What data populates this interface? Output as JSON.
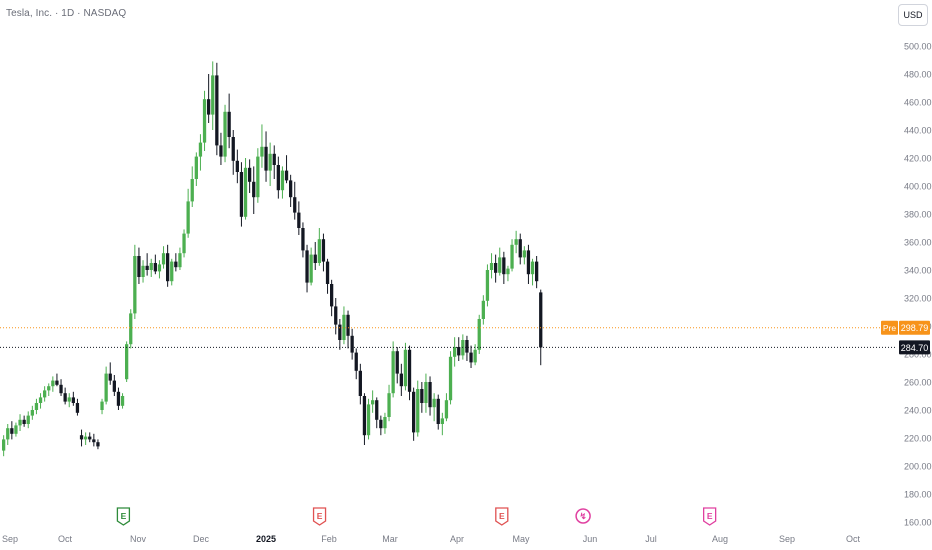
{
  "header": {
    "title": "Tesla, Inc. · 1D · NASDAQ",
    "currency_button": "USD"
  },
  "colors": {
    "up": "#4caf50",
    "down": "#131722",
    "pre_line": "#f7931a",
    "axis_text": "#787b86",
    "earnings_green": "#2e8b3a",
    "earnings_red": "#e05252",
    "earnings_pink": "#e040a0",
    "dividend_purple": "#9c27b0"
  },
  "chart_data": {
    "type": "candlestick",
    "title": "Tesla, Inc. · 1D · NASDAQ",
    "x_axis": {
      "labels": [
        "Sep",
        "Oct",
        "Nov",
        "Dec",
        "2025",
        "Feb",
        "Mar",
        "Apr",
        "May",
        "Jun",
        "Jul",
        "Aug",
        "Sep",
        "Oct"
      ]
    },
    "y_axis": {
      "range": [
        160,
        500
      ],
      "ticks": [
        160,
        180,
        200,
        220,
        240,
        260,
        280,
        300,
        320,
        340,
        360,
        380,
        400,
        420,
        440,
        460,
        480,
        500
      ]
    },
    "pre_market": {
      "label": "Pre",
      "value": "298.79",
      "price": 298.79
    },
    "last_price": {
      "value": "284.70",
      "price": 284.7
    },
    "events": [
      {
        "kind": "earnings",
        "symbol": "E",
        "style": "green",
        "month": "Oct",
        "offset": 0.8
      },
      {
        "kind": "earnings",
        "symbol": "E",
        "style": "red",
        "month": "Jan",
        "offset": 0.85
      },
      {
        "kind": "earnings",
        "symbol": "E",
        "style": "red",
        "month": "Apr",
        "offset": 0.7
      },
      {
        "kind": "split",
        "symbol": "↯",
        "style": "pink",
        "month": "May",
        "offset": 0.9
      },
      {
        "kind": "earnings",
        "symbol": "E",
        "style": "pink",
        "month": "Jul",
        "offset": 0.85
      }
    ],
    "bars": [
      [
        211,
        222,
        207,
        219
      ],
      [
        219,
        230,
        215,
        227
      ],
      [
        227,
        232,
        219,
        223
      ],
      [
        223,
        231,
        221,
        229
      ],
      [
        229,
        237,
        225,
        233
      ],
      [
        233,
        236,
        228,
        230
      ],
      [
        230,
        239,
        227,
        236
      ],
      [
        236,
        243,
        233,
        240
      ],
      [
        240,
        248,
        237,
        245
      ],
      [
        245,
        252,
        241,
        249
      ],
      [
        249,
        257,
        246,
        254
      ],
      [
        254,
        259,
        250,
        257
      ],
      [
        257,
        264,
        253,
        261
      ],
      [
        261,
        266,
        257,
        258
      ],
      [
        258,
        262,
        250,
        252
      ],
      [
        252,
        256,
        244,
        246
      ],
      [
        246,
        252,
        242,
        249
      ],
      [
        249,
        253,
        243,
        245
      ],
      [
        245,
        248,
        236,
        238
      ],
      [
        222,
        226,
        214,
        219
      ],
      [
        219,
        224,
        215,
        221
      ],
      [
        221,
        224,
        217,
        219
      ],
      [
        219,
        223,
        214,
        217
      ],
      [
        217,
        219,
        212,
        214
      ],
      [
        240,
        248,
        237,
        246
      ],
      [
        246,
        271,
        244,
        266
      ],
      [
        266,
        274,
        258,
        261
      ],
      [
        261,
        265,
        250,
        253
      ],
      [
        253,
        256,
        240,
        243
      ],
      [
        243,
        252,
        241,
        250
      ],
      [
        262,
        289,
        260,
        287
      ],
      [
        287,
        312,
        284,
        309
      ],
      [
        309,
        358,
        305,
        350
      ],
      [
        350,
        356,
        330,
        335
      ],
      [
        335,
        347,
        331,
        343
      ],
      [
        343,
        352,
        336,
        340
      ],
      [
        340,
        348,
        335,
        345
      ],
      [
        345,
        351,
        337,
        339
      ],
      [
        339,
        347,
        334,
        344
      ],
      [
        344,
        357,
        341,
        352
      ],
      [
        352,
        358,
        328,
        332
      ],
      [
        332,
        348,
        329,
        346
      ],
      [
        346,
        352,
        339,
        342
      ],
      [
        342,
        356,
        340,
        352
      ],
      [
        352,
        369,
        349,
        366
      ],
      [
        366,
        398,
        363,
        389
      ],
      [
        389,
        414,
        385,
        405
      ],
      [
        405,
        424,
        400,
        421
      ],
      [
        421,
        437,
        411,
        431
      ],
      [
        431,
        468,
        425,
        462
      ],
      [
        462,
        480,
        445,
        451
      ],
      [
        451,
        489,
        440,
        479
      ],
      [
        479,
        488,
        422,
        429
      ],
      [
        429,
        438,
        415,
        421
      ],
      [
        421,
        458,
        417,
        453
      ],
      [
        453,
        466,
        427,
        435
      ],
      [
        435,
        440,
        408,
        418
      ],
      [
        418,
        426,
        402,
        410
      ],
      [
        410,
        417,
        371,
        378
      ],
      [
        378,
        420,
        376,
        413
      ],
      [
        413,
        419,
        395,
        403
      ],
      [
        403,
        414,
        380,
        392
      ],
      [
        392,
        427,
        388,
        421
      ],
      [
        421,
        444,
        413,
        428
      ],
      [
        428,
        439,
        403,
        411
      ],
      [
        411,
        431,
        400,
        423
      ],
      [
        423,
        429,
        405,
        415
      ],
      [
        415,
        421,
        391,
        397
      ],
      [
        397,
        414,
        391,
        411
      ],
      [
        411,
        422,
        402,
        404
      ],
      [
        404,
        408,
        385,
        392
      ],
      [
        392,
        403,
        376,
        381
      ],
      [
        381,
        389,
        365,
        370
      ],
      [
        370,
        374,
        349,
        354
      ],
      [
        354,
        358,
        324,
        331
      ],
      [
        331,
        356,
        329,
        351
      ],
      [
        351,
        360,
        340,
        345
      ],
      [
        345,
        370,
        343,
        362
      ],
      [
        362,
        366,
        339,
        346
      ],
      [
        346,
        348,
        323,
        330
      ],
      [
        330,
        333,
        307,
        314
      ],
      [
        314,
        320,
        294,
        301
      ],
      [
        301,
        305,
        283,
        290
      ],
      [
        290,
        314,
        287,
        308
      ],
      [
        308,
        311,
        284,
        293
      ],
      [
        293,
        298,
        276,
        281
      ],
      [
        281,
        284,
        262,
        268
      ],
      [
        268,
        273,
        244,
        250
      ],
      [
        250,
        252,
        215,
        222
      ],
      [
        222,
        248,
        219,
        244
      ],
      [
        244,
        254,
        238,
        247
      ],
      [
        247,
        249,
        227,
        233
      ],
      [
        233,
        236,
        222,
        227
      ],
      [
        227,
        238,
        223,
        235
      ],
      [
        235,
        258,
        232,
        252
      ],
      [
        252,
        289,
        249,
        282
      ],
      [
        282,
        285,
        259,
        266
      ],
      [
        266,
        273,
        250,
        257
      ],
      [
        257,
        288,
        254,
        283
      ],
      [
        283,
        286,
        247,
        253
      ],
      [
        253,
        256,
        218,
        224
      ],
      [
        224,
        261,
        221,
        255
      ],
      [
        255,
        260,
        238,
        245
      ],
      [
        245,
        266,
        238,
        260
      ],
      [
        260,
        264,
        236,
        242
      ],
      [
        242,
        252,
        232,
        248
      ],
      [
        248,
        251,
        226,
        230
      ],
      [
        230,
        238,
        222,
        234
      ],
      [
        234,
        252,
        232,
        247
      ],
      [
        247,
        282,
        244,
        278
      ],
      [
        278,
        292,
        271,
        285
      ],
      [
        285,
        292,
        275,
        279
      ],
      [
        279,
        294,
        276,
        290
      ],
      [
        290,
        293,
        275,
        281
      ],
      [
        281,
        286,
        270,
        274
      ],
      [
        274,
        287,
        272,
        283
      ],
      [
        283,
        308,
        280,
        305
      ],
      [
        305,
        322,
        301,
        318
      ],
      [
        318,
        344,
        314,
        340
      ],
      [
        340,
        352,
        334,
        345
      ],
      [
        345,
        351,
        331,
        338
      ],
      [
        338,
        356,
        336,
        349
      ],
      [
        349,
        353,
        330,
        337
      ],
      [
        337,
        343,
        332,
        341
      ],
      [
        341,
        362,
        339,
        358
      ],
      [
        358,
        368,
        352,
        362
      ],
      [
        362,
        366,
        344,
        349
      ],
      [
        349,
        357,
        344,
        354
      ],
      [
        354,
        358,
        330,
        337
      ],
      [
        337,
        348,
        329,
        346
      ],
      [
        346,
        350,
        327,
        332
      ],
      [
        324,
        326,
        272,
        284.7
      ]
    ]
  }
}
